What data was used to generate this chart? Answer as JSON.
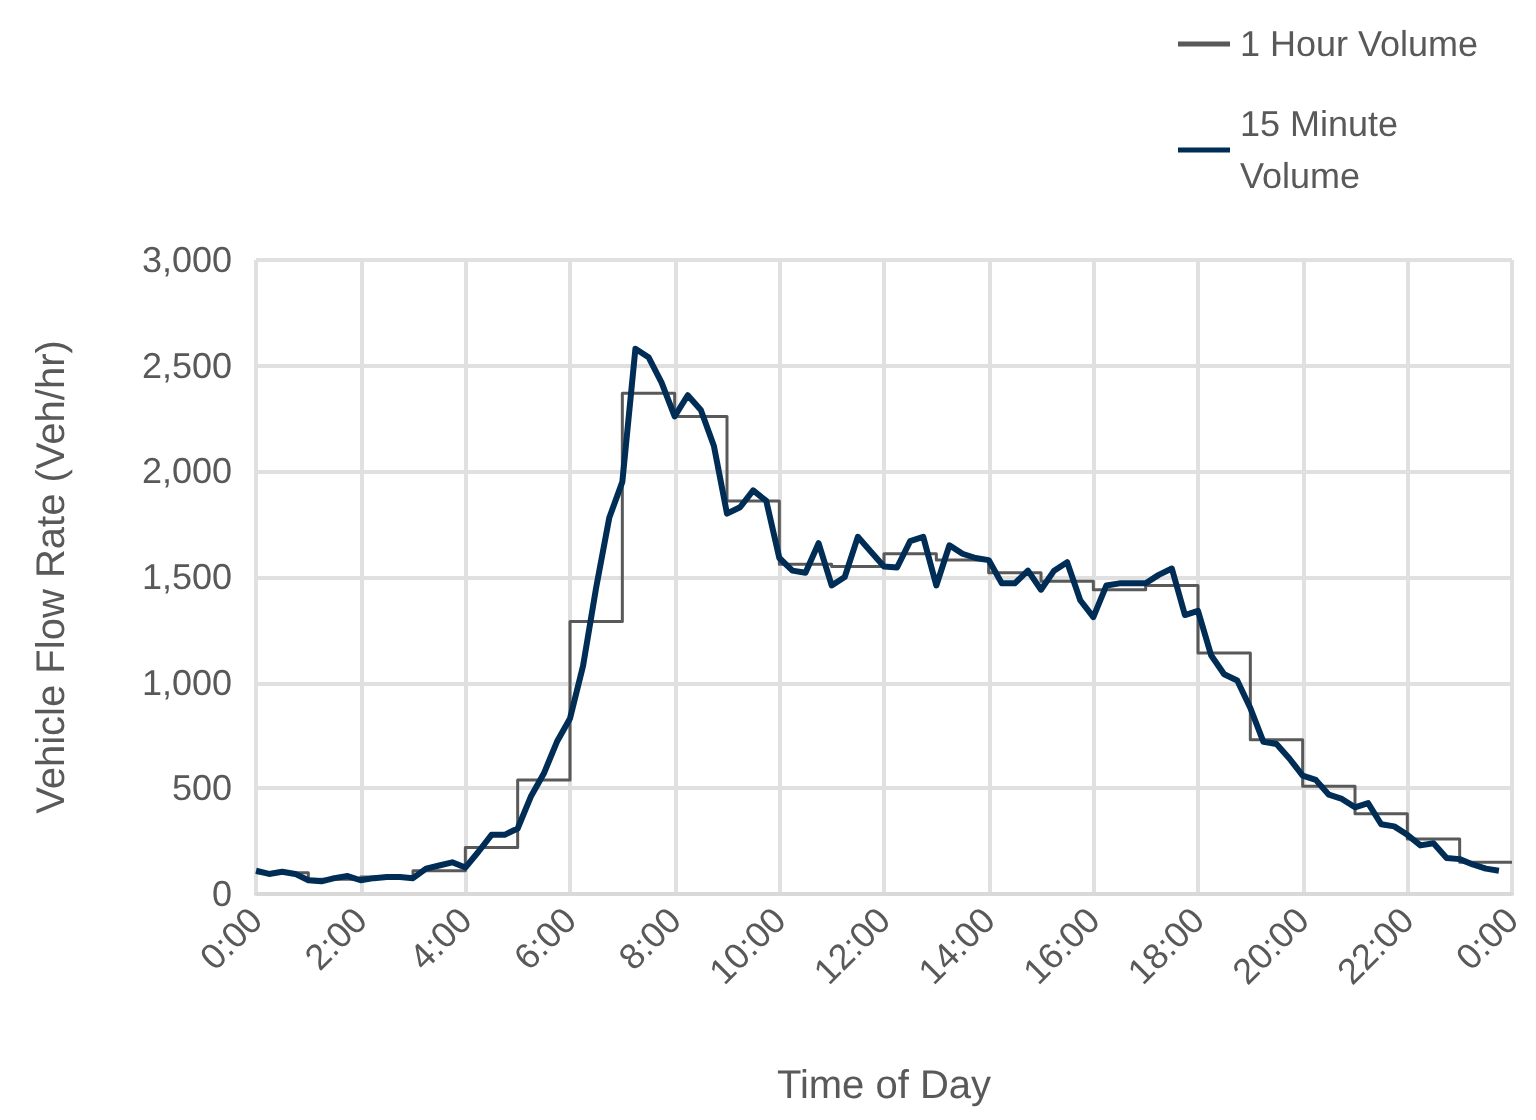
{
  "chart_data": {
    "type": "line",
    "xlabel": "Time of Day",
    "ylabel": "Vehicle Flow Rate (Veh/hr)",
    "xlim": [
      0,
      24
    ],
    "xticks": [
      {
        "value": 0,
        "label": "0:00"
      },
      {
        "value": 2,
        "label": "2:00"
      },
      {
        "value": 4,
        "label": "4:00"
      },
      {
        "value": 6,
        "label": "6:00"
      },
      {
        "value": 8,
        "label": "8:00"
      },
      {
        "value": 10,
        "label": "10:00"
      },
      {
        "value": 12,
        "label": "12:00"
      },
      {
        "value": 14,
        "label": "14:00"
      },
      {
        "value": 16,
        "label": "16:00"
      },
      {
        "value": 18,
        "label": "18:00"
      },
      {
        "value": 20,
        "label": "20:00"
      },
      {
        "value": 22,
        "label": "22:00"
      },
      {
        "value": 24,
        "label": "0:00"
      }
    ],
    "ylim": [
      0,
      3000
    ],
    "yticks": [
      {
        "value": 0,
        "label": "0"
      },
      {
        "value": 500,
        "label": "500"
      },
      {
        "value": 1000,
        "label": "1,000"
      },
      {
        "value": 1500,
        "label": "1,500"
      },
      {
        "value": 2000,
        "label": "2,000"
      },
      {
        "value": 2500,
        "label": "2,500"
      },
      {
        "value": 3000,
        "label": "3,000"
      }
    ],
    "grid": true,
    "legend": "top right",
    "marker": "none",
    "line_style": "solid",
    "series": [
      {
        "name": "1 Hour Volume",
        "type": "step",
        "color": "#595959",
        "x": [
          0,
          1,
          2,
          3,
          4,
          5,
          6,
          7,
          8,
          9,
          10,
          11,
          12,
          13,
          14,
          15,
          16,
          17,
          18,
          19,
          20,
          21,
          22,
          23,
          24
        ],
        "values": [
          100,
          70,
          80,
          110,
          220,
          540,
          1290,
          2370,
          2260,
          1860,
          1560,
          1550,
          1610,
          1580,
          1520,
          1480,
          1440,
          1460,
          1140,
          730,
          510,
          380,
          260,
          150,
          150
        ]
      },
      {
        "name": "15 Minute Volume",
        "type": "line",
        "color": "#002d56",
        "x": [
          0,
          0.25,
          0.5,
          0.75,
          1,
          1.25,
          1.5,
          1.75,
          2,
          2.25,
          2.5,
          2.75,
          3,
          3.25,
          3.5,
          3.75,
          4,
          4.25,
          4.5,
          4.75,
          5,
          5.25,
          5.5,
          5.75,
          6,
          6.25,
          6.5,
          6.75,
          7,
          7.25,
          7.5,
          7.75,
          8,
          8.25,
          8.5,
          8.75,
          9,
          9.25,
          9.5,
          9.75,
          10,
          10.25,
          10.5,
          10.75,
          11,
          11.25,
          11.5,
          11.75,
          12,
          12.25,
          12.5,
          12.75,
          13,
          13.25,
          13.5,
          13.75,
          14,
          14.25,
          14.5,
          14.75,
          15,
          15.25,
          15.5,
          15.75,
          16,
          16.25,
          16.5,
          16.75,
          17,
          17.25,
          17.5,
          17.75,
          18,
          18.25,
          18.5,
          18.75,
          19,
          19.25,
          19.5,
          19.75,
          20,
          20.25,
          20.5,
          20.75,
          21,
          21.25,
          21.5,
          21.75,
          22,
          22.25,
          22.5,
          22.75,
          23,
          23.25,
          23.5,
          23.75
        ],
        "values": [
          110,
          95,
          105,
          95,
          65,
          60,
          75,
          85,
          65,
          75,
          80,
          80,
          75,
          120,
          135,
          150,
          125,
          200,
          280,
          280,
          310,
          460,
          570,
          720,
          830,
          1080,
          1450,
          1780,
          1950,
          2580,
          2540,
          2420,
          2260,
          2360,
          2290,
          2120,
          1800,
          1830,
          1910,
          1860,
          1590,
          1530,
          1520,
          1660,
          1460,
          1500,
          1690,
          1620,
          1550,
          1545,
          1670,
          1690,
          1460,
          1650,
          1610,
          1590,
          1580,
          1470,
          1470,
          1530,
          1440,
          1530,
          1570,
          1390,
          1310,
          1460,
          1470,
          1470,
          1470,
          1510,
          1540,
          1320,
          1340,
          1130,
          1040,
          1010,
          880,
          720,
          710,
          640,
          560,
          540,
          470,
          450,
          410,
          430,
          330,
          320,
          280,
          230,
          240,
          170,
          165,
          140,
          120,
          110
        ]
      }
    ]
  }
}
